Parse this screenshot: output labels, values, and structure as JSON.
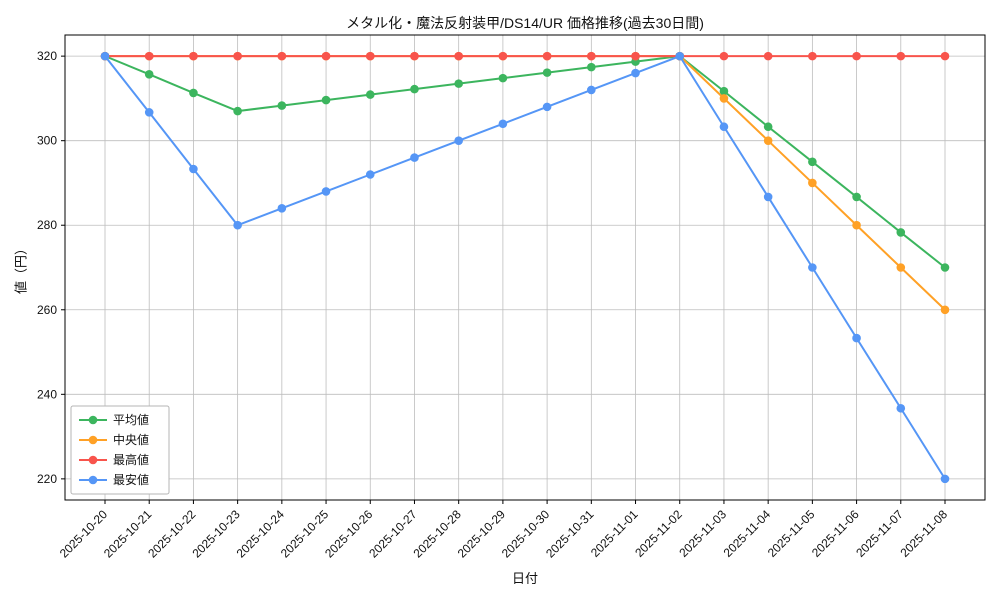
{
  "chart_data": {
    "type": "line",
    "title": "メタル化・魔法反射装甲/DS14/UR 価格推移(過去30日間)",
    "xlabel": "日付",
    "ylabel": "値（円）",
    "categories": [
      "2025-10-20",
      "2025-10-21",
      "2025-10-22",
      "2025-10-23",
      "2025-10-24",
      "2025-10-25",
      "2025-10-26",
      "2025-10-27",
      "2025-10-28",
      "2025-10-29",
      "2025-10-30",
      "2025-10-31",
      "2025-11-01",
      "2025-11-02",
      "2025-11-03",
      "2025-11-04",
      "2025-11-05",
      "2025-11-06",
      "2025-11-07",
      "2025-11-08"
    ],
    "series": [
      {
        "name": "平均値",
        "color": "#3cb55e",
        "values": [
          320,
          315.7,
          311.3,
          307,
          308.3,
          309.6,
          310.9,
          312.2,
          313.5,
          314.8,
          316.1,
          317.4,
          318.7,
          320,
          311.7,
          303.3,
          295,
          286.7,
          278.3,
          270
        ]
      },
      {
        "name": "中央値",
        "color": "#ffa126",
        "values": [
          320,
          320,
          320,
          320,
          320,
          320,
          320,
          320,
          320,
          320,
          320,
          320,
          320,
          320,
          310,
          300,
          290,
          280,
          270,
          260
        ]
      },
      {
        "name": "最高値",
        "color": "#f8544c",
        "values": [
          320,
          320,
          320,
          320,
          320,
          320,
          320,
          320,
          320,
          320,
          320,
          320,
          320,
          320,
          320,
          320,
          320,
          320,
          320,
          320
        ]
      },
      {
        "name": "最安値",
        "color": "#5596f6",
        "values": [
          320,
          306.7,
          293.3,
          280,
          284,
          288,
          292,
          296,
          300,
          304,
          308,
          312,
          316,
          320,
          303.3,
          286.7,
          270,
          253.3,
          236.7,
          220
        ]
      }
    ],
    "ylim": [
      215,
      325
    ],
    "yticks": [
      220,
      240,
      260,
      280,
      300,
      320
    ],
    "grid": true,
    "legend_position": "lower left",
    "colors": {
      "grid": "#bdbdbd",
      "axis": "#000000",
      "text": "#111111",
      "legend_border": "#b5b5b5",
      "background": "#ffffff"
    }
  }
}
